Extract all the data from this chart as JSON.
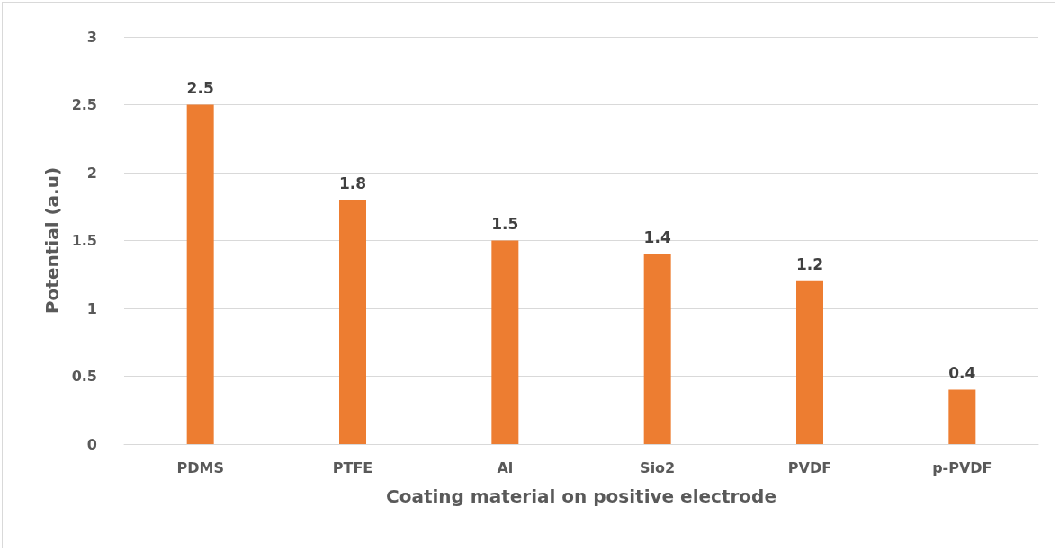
{
  "chart_data": {
    "type": "bar",
    "xlabel": "Coating material on positive electrode",
    "ylabel": "Potential (a.u)",
    "categories": [
      "PDMS",
      "PTFE",
      "Al",
      "Sio2",
      "PVDF",
      "p-PVDF"
    ],
    "values": [
      2.5,
      1.8,
      1.5,
      1.4,
      1.2,
      0.4
    ],
    "color": "#ed7d31",
    "ylim": [
      0,
      3
    ],
    "yticks": [
      0,
      0.5,
      1,
      1.5,
      2,
      2.5,
      3
    ],
    "grid": "y",
    "data_labels": true
  }
}
